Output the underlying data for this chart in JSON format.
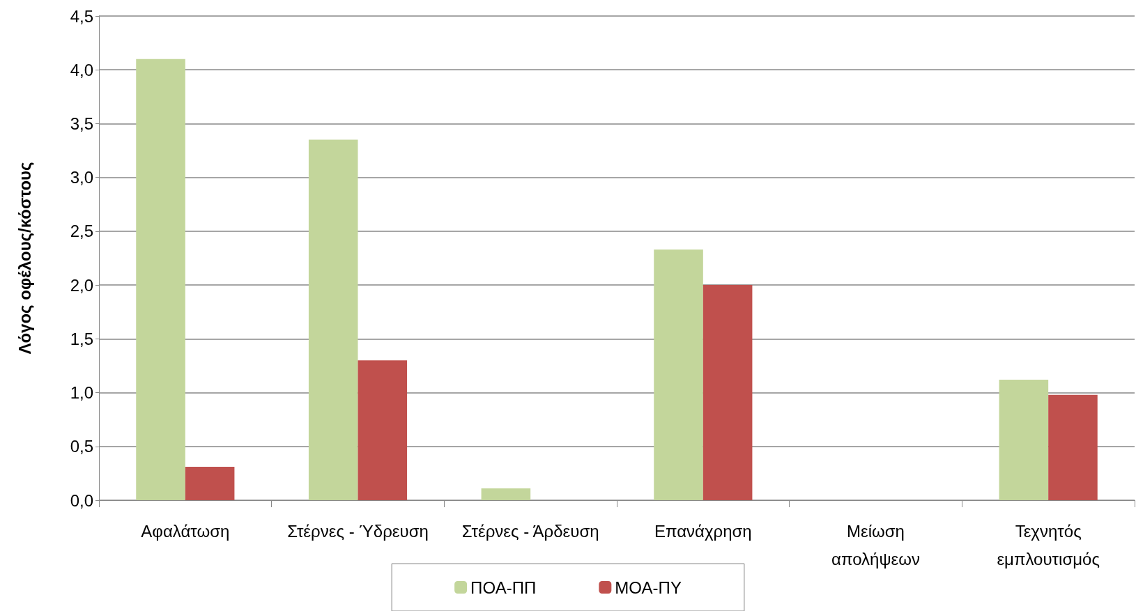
{
  "chart_data": {
    "type": "bar",
    "ylabel": "Λόγος οφέλους/κόστους",
    "categories": [
      "Αφαλάτωση",
      "Στέρνες - Ύδρευση",
      "Στέρνες - Άρδευση",
      "Επανάχρηση",
      "Μείωση\nαπολήψεων",
      "Τεχνητός\nεμπλουτισμός"
    ],
    "series": [
      {
        "name": "ΠΟΑ-ΠΠ",
        "color": "#c3d69b",
        "values": [
          4.1,
          3.35,
          0.11,
          2.33,
          0,
          1.12
        ]
      },
      {
        "name": "ΜΟΑ-ΠΥ",
        "color": "#c0504d",
        "values": [
          0.31,
          1.3,
          0,
          2.0,
          0,
          0.98
        ]
      }
    ],
    "ylim": [
      0,
      4.5
    ],
    "yticks": [
      {
        "value": 0,
        "label": "0,0"
      },
      {
        "value": 0.5,
        "label": "0,5"
      },
      {
        "value": 1,
        "label": "1,0"
      },
      {
        "value": 1.5,
        "label": "1,5"
      },
      {
        "value": 2,
        "label": "2,0"
      },
      {
        "value": 2.5,
        "label": "2,5"
      },
      {
        "value": 3,
        "label": "3,0"
      },
      {
        "value": 3.5,
        "label": "3,5"
      },
      {
        "value": 4,
        "label": "4,0"
      },
      {
        "value": 4.5,
        "label": "4,5"
      }
    ],
    "grid": "y",
    "legend": "bottom"
  }
}
